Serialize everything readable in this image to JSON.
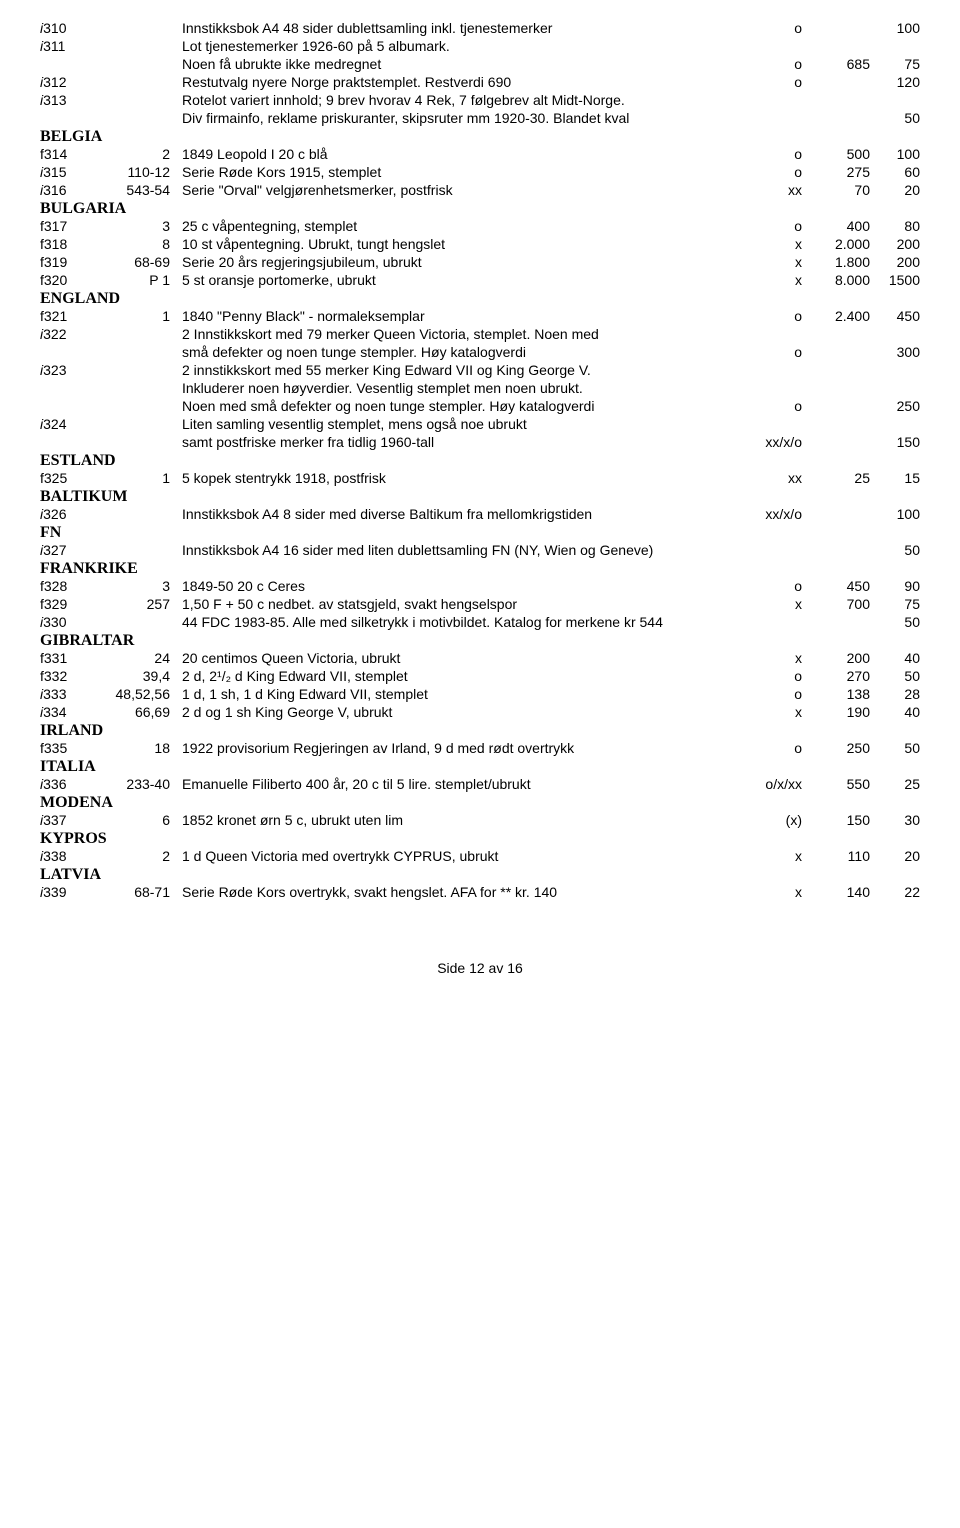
{
  "rows": [
    {
      "id": "i310",
      "idItalic": true,
      "ref": "",
      "desc": "Innstikksbok A4 48 sider dublettsamling inkl. tjenestemerker",
      "cond": "o",
      "p1": "",
      "p2": "100"
    },
    {
      "id": "i311",
      "idItalic": true,
      "ref": "",
      "desc": "Lot tjenestemerker 1926-60 på 5 albumark.",
      "cond": "",
      "p1": "",
      "p2": ""
    },
    {
      "id": "",
      "ref": "",
      "desc": "Noen få ubrukte ikke medregnet",
      "cond": "o",
      "p1": "685",
      "p2": "75",
      "indent": true
    },
    {
      "id": "i312",
      "idItalic": true,
      "ref": "",
      "desc": "Restutvalg nyere Norge praktstemplet. Restverdi 690",
      "cond": "o",
      "p1": "",
      "p2": "120"
    },
    {
      "id": "i313",
      "idItalic": true,
      "ref": "",
      "desc": "Rotelot variert innhold; 9 brev hvorav 4 Rek, 7 følgebrev alt Midt-Norge.",
      "cond": "",
      "p1": "",
      "p2": ""
    },
    {
      "id": "",
      "ref": "",
      "desc": "Div firmainfo, reklame priskuranter, skipsruter mm 1920-30. Blandet kval",
      "cond": "",
      "p1": "",
      "p2": "50",
      "indent": true
    },
    {
      "section": "BELGIA"
    },
    {
      "id": "f314",
      "ref": "2",
      "desc": "1849 Leopold I 20 c blå",
      "cond": "o",
      "p1": "500",
      "p2": "100"
    },
    {
      "id": "i315",
      "idItalic": true,
      "ref": "110-12",
      "desc": "Serie Røde Kors 1915, stemplet",
      "cond": "o",
      "p1": "275",
      "p2": "60"
    },
    {
      "id": "i316",
      "idItalic": true,
      "ref": "543-54",
      "desc": "Serie \"Orval\" velgjørenhetsmerker, postfrisk",
      "cond": "xx",
      "p1": "70",
      "p2": "20"
    },
    {
      "section": "BULGARIA"
    },
    {
      "id": "f317",
      "ref": "3",
      "desc": "25 c våpentegning, stemplet",
      "cond": "o",
      "p1": "400",
      "p2": "80"
    },
    {
      "id": "f318",
      "ref": "8",
      "desc": "10 st våpentegning. Ubrukt, tungt hengslet",
      "cond": "x",
      "p1": "2.000",
      "p2": "200"
    },
    {
      "id": "f319",
      "ref": "68-69",
      "desc": "Serie 20 års regjeringsjubileum, ubrukt",
      "cond": "x",
      "p1": "1.800",
      "p2": "200"
    },
    {
      "id": "f320",
      "ref": "P 1",
      "desc": "5 st oransje portomerke, ubrukt",
      "cond": "x",
      "p1": "8.000",
      "p2": "1500"
    },
    {
      "section": "ENGLAND"
    },
    {
      "id": "f321",
      "ref": "1",
      "desc": "1840 \"Penny Black\" - normaleksemplar",
      "cond": "o",
      "p1": "2.400",
      "p2": "450"
    },
    {
      "id": "i322",
      "idItalic": true,
      "ref": "",
      "desc": "2 Innstikkskort med 79 merker Queen Victoria, stemplet. Noen med",
      "cond": "",
      "p1": "",
      "p2": ""
    },
    {
      "id": "",
      "ref": "",
      "desc": "små defekter og noen tunge stempler. Høy katalogverdi",
      "cond": "o",
      "p1": "",
      "p2": "300",
      "indent": true
    },
    {
      "id": "i323",
      "idItalic": true,
      "ref": "",
      "desc": "2 innstikkskort med 55 merker King Edward VII og King George V.",
      "cond": "",
      "p1": "",
      "p2": ""
    },
    {
      "id": "",
      "ref": "",
      "desc": "Inkluderer noen høyverdier. Vesentlig stemplet men noen ubrukt.",
      "cond": "",
      "p1": "",
      "p2": "",
      "indent": true
    },
    {
      "id": "",
      "ref": "",
      "desc": "Noen med små defekter og noen tunge stempler. Høy katalogverdi",
      "cond": "o",
      "p1": "",
      "p2": "250",
      "indent": true
    },
    {
      "id": "i324",
      "idItalic": true,
      "ref": "",
      "desc": "Liten samling vesentlig stemplet, mens også noe ubrukt",
      "cond": "",
      "p1": "",
      "p2": ""
    },
    {
      "id": "",
      "ref": "",
      "desc": "samt postfriske merker fra tidlig 1960-tall",
      "cond": "xx/x/o",
      "p1": "",
      "p2": "150",
      "indent": true
    },
    {
      "section": "ESTLAND"
    },
    {
      "id": "f325",
      "ref": "1",
      "desc": "5 kopek stentrykk 1918, postfrisk",
      "cond": "xx",
      "p1": "25",
      "p2": "15"
    },
    {
      "section": "BALTIKUM"
    },
    {
      "id": "i326",
      "idItalic": true,
      "ref": "",
      "desc": "Innstikksbok A4 8 sider med diverse Baltikum fra mellomkrigstiden",
      "cond": "xx/x/o",
      "p1": "",
      "p2": "100"
    },
    {
      "section": "FN"
    },
    {
      "id": "i327",
      "idItalic": true,
      "ref": "",
      "desc": "Innstikksbok A4 16 sider med liten dublettsamling FN (NY, Wien og Geneve)",
      "cond": "",
      "p1": "",
      "p2": "50"
    },
    {
      "section": "FRANKRIKE"
    },
    {
      "id": "f328",
      "ref": "3",
      "desc": "1849-50 20 c Ceres",
      "cond": "o",
      "p1": "450",
      "p2": "90"
    },
    {
      "id": "f329",
      "ref": "257",
      "desc": "1,50 F + 50 c nedbet. av statsgjeld, svakt hengselspor",
      "cond": "x",
      "p1": "700",
      "p2": "75"
    },
    {
      "id": "i330",
      "idItalic": true,
      "ref": "",
      "desc": "44 FDC 1983-85. Alle med silketrykk i motivbildet. Katalog for merkene kr 544",
      "cond": "",
      "p1": "",
      "p2": "50"
    },
    {
      "section": "GIBRALTAR"
    },
    {
      "id": "f331",
      "ref": "24",
      "desc": "20 centimos Queen Victoria, ubrukt",
      "cond": "x",
      "p1": "200",
      "p2": "40"
    },
    {
      "id": "f332",
      "ref": "39,4",
      "desc": "2 d, 2¹/₂ d King Edward VII, stemplet",
      "cond": "o",
      "p1": "270",
      "p2": "50"
    },
    {
      "id": "i333",
      "idItalic": true,
      "ref": "48,52,56",
      "desc": "1 d, 1 sh, 1 d King Edward VII, stemplet",
      "cond": "o",
      "p1": "138",
      "p2": "28"
    },
    {
      "id": "i334",
      "idItalic": true,
      "ref": "66,69",
      "desc": "2 d og 1 sh King George V, ubrukt",
      "cond": "x",
      "p1": "190",
      "p2": "40"
    },
    {
      "section": "IRLAND"
    },
    {
      "id": "f335",
      "ref": "18",
      "desc": "1922 provisorium Regjeringen av Irland, 9 d med rødt overtrykk",
      "cond": "o",
      "p1": "250",
      "p2": "50"
    },
    {
      "section": "ITALIA"
    },
    {
      "id": "i336",
      "idItalic": true,
      "ref": "233-40",
      "desc": "Emanuelle Filiberto 400 år, 20 c til 5 lire. stemplet/ubrukt",
      "cond": "o/x/xx",
      "p1": "550",
      "p2": "25"
    },
    {
      "section": "MODENA"
    },
    {
      "id": "i337",
      "idItalic": true,
      "ref": "6",
      "desc": "1852 kronet ørn 5 c, ubrukt uten lim",
      "cond": "(x)",
      "p1": "150",
      "p2": "30"
    },
    {
      "section": "KYPROS"
    },
    {
      "id": "i338",
      "idItalic": true,
      "ref": "2",
      "desc": "1 d Queen Victoria med overtrykk CYPRUS, ubrukt",
      "cond": "x",
      "p1": "110",
      "p2": "20"
    },
    {
      "section": "LATVIA"
    },
    {
      "id": "i339",
      "idItalic": true,
      "ref": "68-71",
      "desc": "Serie Røde Kors overtrykk, svakt hengslet. AFA for ** kr. 140",
      "cond": "x",
      "p1": "140",
      "p2": "22"
    }
  ],
  "footer": "Side 12 av 16"
}
